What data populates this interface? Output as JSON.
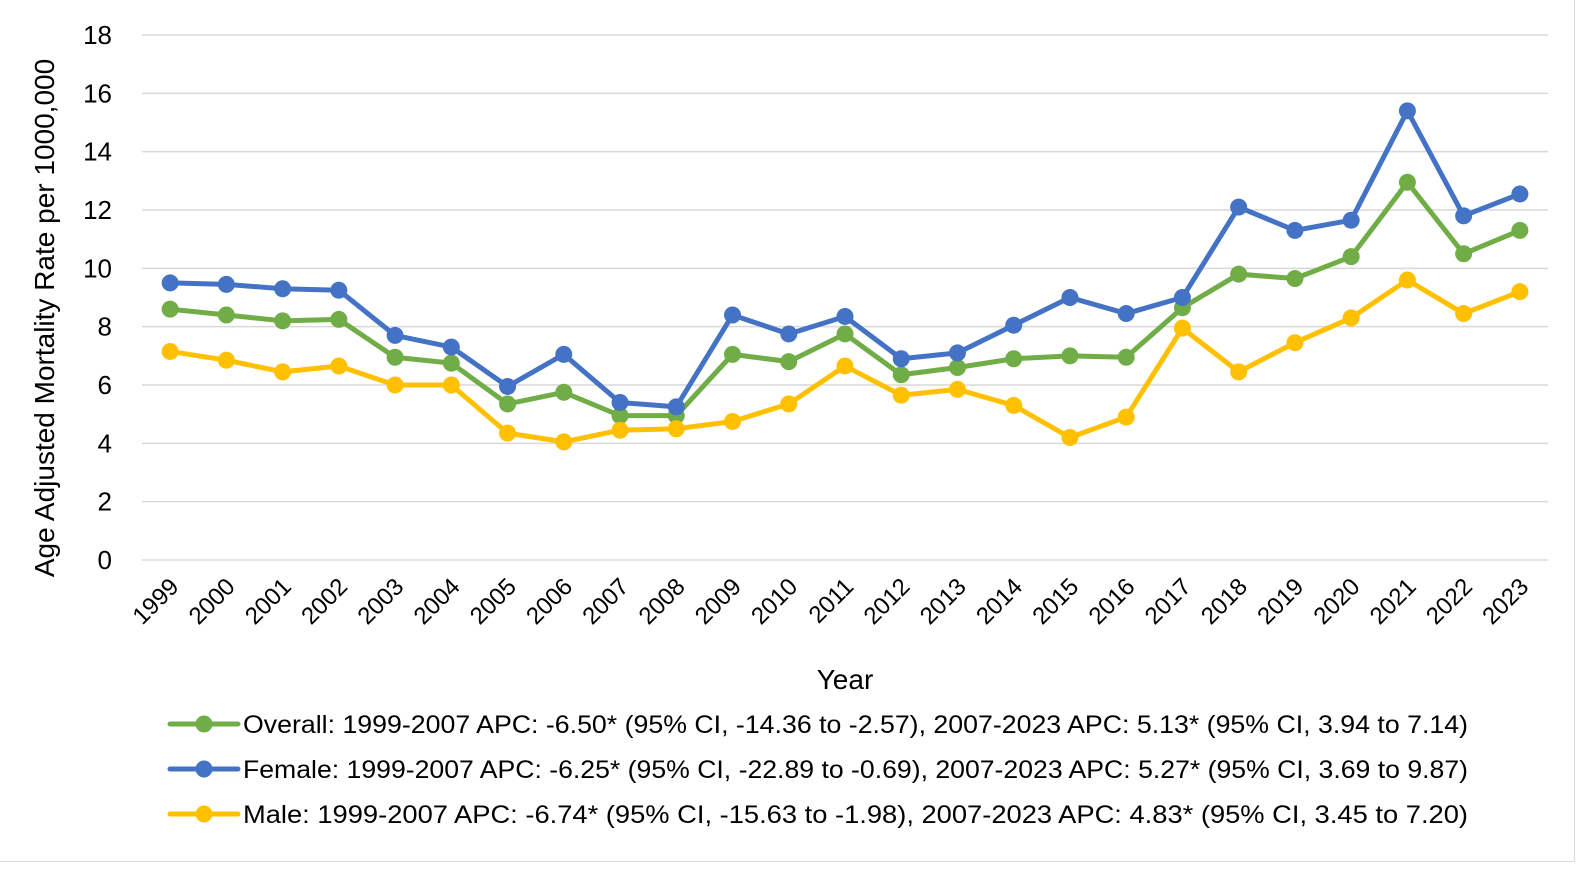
{
  "chart_data": {
    "type": "line",
    "title": "",
    "xlabel": "Year",
    "ylabel": "Age Adjusted Mortality Rate per 1000,000",
    "ylim": [
      0,
      18
    ],
    "yticks": [
      0,
      2,
      4,
      6,
      8,
      10,
      12,
      14,
      16,
      18
    ],
    "grid": "horizontal",
    "legend_position": "bottom",
    "categories": [
      "1999",
      "2000",
      "2001",
      "2002",
      "2003",
      "2004",
      "2005",
      "2006",
      "2007",
      "2008",
      "2009",
      "2010",
      "2011",
      "2012",
      "2013",
      "2014",
      "2015",
      "2016",
      "2017",
      "2018",
      "2019",
      "2020",
      "2021",
      "2022",
      "2023"
    ],
    "series": [
      {
        "name": "Overall: 1999-2007 APC: -6.50* (95% CI, -14.36 to -2.57), 2007-2023 APC: 5.13* (95% CI, 3.94 to 7.14)",
        "color": "#70ad47",
        "values": [
          8.6,
          8.4,
          8.2,
          8.25,
          6.95,
          6.75,
          5.35,
          5.75,
          4.95,
          4.95,
          7.05,
          6.8,
          7.75,
          6.35,
          6.6,
          6.9,
          7.0,
          6.95,
          8.65,
          9.8,
          9.65,
          10.4,
          12.95,
          10.5,
          11.3
        ]
      },
      {
        "name": "Female: 1999-2007 APC: -6.25* (95% CI, -22.89 to -0.69), 2007-2023 APC: 5.27* (95% CI, 3.69 to 9.87)",
        "color": "#4472c4",
        "values": [
          9.5,
          9.45,
          9.3,
          9.25,
          7.7,
          7.3,
          5.95,
          7.05,
          5.4,
          5.25,
          8.4,
          7.75,
          8.35,
          6.9,
          7.1,
          8.05,
          9.0,
          8.45,
          9.0,
          12.1,
          11.3,
          11.65,
          15.4,
          11.8,
          12.55
        ]
      },
      {
        "name": "Male: 1999-2007 APC: -6.74* (95% CI, -15.63 to -1.98), 2007-2023 APC: 4.83* (95% CI, 3.45 to 7.20)",
        "color": "#ffc000",
        "values": [
          7.15,
          6.85,
          6.45,
          6.65,
          6.0,
          6.0,
          4.35,
          4.05,
          4.45,
          4.5,
          4.75,
          5.35,
          6.65,
          5.65,
          5.85,
          5.3,
          4.2,
          4.9,
          7.95,
          6.45,
          7.45,
          8.3,
          9.6,
          8.45,
          9.2
        ]
      }
    ]
  }
}
